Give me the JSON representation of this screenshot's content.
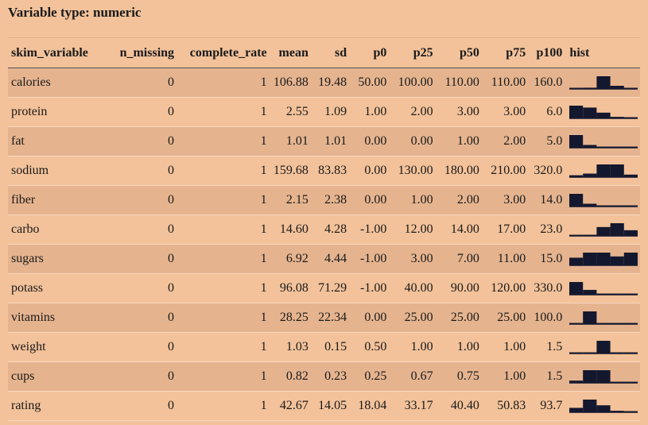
{
  "title": "Variable type: numeric",
  "columns": [
    "skim_variable",
    "n_missing",
    "complete_rate",
    "mean",
    "sd",
    "p0",
    "p25",
    "p50",
    "p75",
    "p100",
    "hist"
  ],
  "hist_color": "#14182e",
  "rows": [
    {
      "skim_variable": "calories",
      "n_missing": "0",
      "complete_rate": "1",
      "mean": "106.88",
      "sd": "19.48",
      "p0": "50.00",
      "p25": "100.00",
      "p50": "110.00",
      "p75": "110.00",
      "p100": "160.0",
      "hist": [
        0.04,
        0.1,
        1,
        0.25,
        0.06
      ]
    },
    {
      "skim_variable": "protein",
      "n_missing": "0",
      "complete_rate": "1",
      "mean": "2.55",
      "sd": "1.09",
      "p0": "1.00",
      "p25": "2.00",
      "p50": "3.00",
      "p75": "3.00",
      "p100": "6.0",
      "hist": [
        1,
        0.85,
        0.45,
        0.12,
        0.06
      ]
    },
    {
      "skim_variable": "fat",
      "n_missing": "0",
      "complete_rate": "1",
      "mean": "1.01",
      "sd": "1.01",
      "p0": "0.00",
      "p25": "0.00",
      "p50": "1.00",
      "p75": "2.00",
      "p100": "5.0",
      "hist": [
        1,
        0.22,
        0.06,
        0.06,
        0.06
      ]
    },
    {
      "skim_variable": "sodium",
      "n_missing": "0",
      "complete_rate": "1",
      "mean": "159.68",
      "sd": "83.83",
      "p0": "0.00",
      "p25": "130.00",
      "p50": "180.00",
      "p75": "210.00",
      "p100": "320.0",
      "hist": [
        0.15,
        0.28,
        1,
        1,
        0.2
      ]
    },
    {
      "skim_variable": "fiber",
      "n_missing": "0",
      "complete_rate": "1",
      "mean": "2.15",
      "sd": "2.38",
      "p0": "0.00",
      "p25": "1.00",
      "p50": "2.00",
      "p75": "3.00",
      "p100": "14.0",
      "hist": [
        1,
        0.22,
        0.06,
        0.06,
        0.06
      ]
    },
    {
      "skim_variable": "carbo",
      "n_missing": "0",
      "complete_rate": "1",
      "mean": "14.60",
      "sd": "4.28",
      "p0": "-1.00",
      "p25": "12.00",
      "p50": "14.00",
      "p75": "17.00",
      "p100": "23.0",
      "hist": [
        0.06,
        0.06,
        0.7,
        1,
        0.45
      ]
    },
    {
      "skim_variable": "sugars",
      "n_missing": "0",
      "complete_rate": "1",
      "mean": "6.92",
      "sd": "4.44",
      "p0": "-1.00",
      "p25": "3.00",
      "p50": "7.00",
      "p75": "11.00",
      "p100": "15.0",
      "hist": [
        0.6,
        1,
        1,
        0.7,
        1
      ]
    },
    {
      "skim_variable": "potass",
      "n_missing": "0",
      "complete_rate": "1",
      "mean": "96.08",
      "sd": "71.29",
      "p0": "-1.00",
      "p25": "40.00",
      "p50": "90.00",
      "p75": "120.00",
      "p100": "330.0",
      "hist": [
        1,
        0.38,
        0.06,
        0.06,
        0.06
      ]
    },
    {
      "skim_variable": "vitamins",
      "n_missing": "0",
      "complete_rate": "1",
      "mean": "28.25",
      "sd": "22.34",
      "p0": "0.00",
      "p25": "25.00",
      "p50": "25.00",
      "p75": "25.00",
      "p100": "100.0",
      "hist": [
        0.06,
        1,
        0.06,
        0.06,
        0.06
      ]
    },
    {
      "skim_variable": "weight",
      "n_missing": "0",
      "complete_rate": "1",
      "mean": "1.03",
      "sd": "0.15",
      "p0": "0.50",
      "p25": "1.00",
      "p50": "1.00",
      "p75": "1.00",
      "p100": "1.5",
      "hist": [
        0.06,
        0.06,
        1,
        0.06,
        0.06
      ]
    },
    {
      "skim_variable": "cups",
      "n_missing": "0",
      "complete_rate": "1",
      "mean": "0.82",
      "sd": "0.23",
      "p0": "0.25",
      "p25": "0.67",
      "p50": "0.75",
      "p75": "1.00",
      "p100": "1.5",
      "hist": [
        0.18,
        1,
        1,
        0.06,
        0.06
      ]
    },
    {
      "skim_variable": "rating",
      "n_missing": "0",
      "complete_rate": "1",
      "mean": "42.67",
      "sd": "14.05",
      "p0": "18.04",
      "p25": "33.17",
      "p50": "40.40",
      "p75": "50.83",
      "p100": "93.7",
      "hist": [
        0.35,
        1,
        0.55,
        0.12,
        0.06
      ]
    }
  ]
}
